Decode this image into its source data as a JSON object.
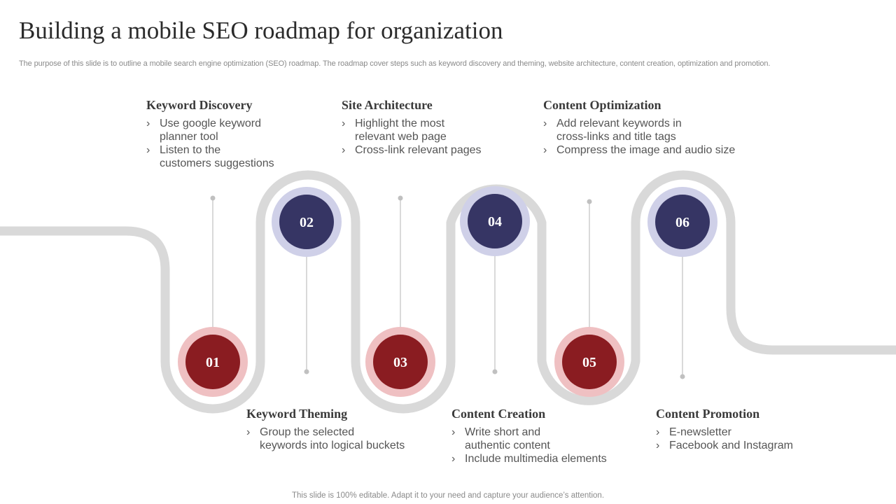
{
  "title": "Building a mobile SEO roadmap for organization",
  "subtitle": "The purpose of this slide is to outline a mobile search engine optimization (SEO) roadmap. The roadmap cover steps such as keyword discovery and theming, website architecture, content creation, optimization and promotion.",
  "footer": "This slide is 100% editable. Adapt it to your need and capture your audience’s attention.",
  "colors": {
    "road": "#d9d9d9",
    "red": "#8a1c21",
    "red_halo": "#efc0c2",
    "navy": "#363564",
    "navy_halo": "#cfd0e8",
    "connector": "#c0c0c0"
  },
  "steps": [
    {
      "num": "01",
      "theme": "red",
      "title": "Keyword Discovery",
      "bullets": [
        "Use google keyword\nplanner tool",
        "Listen to the\ncustomers suggestions"
      ]
    },
    {
      "num": "02",
      "theme": "navy",
      "title": "Keyword Theming",
      "bullets": [
        "Group the selected\n keywords into logical buckets"
      ]
    },
    {
      "num": "03",
      "theme": "red",
      "title": "Site Architecture",
      "bullets": [
        "Highlight the most\nrelevant web page",
        "Cross-link relevant pages"
      ]
    },
    {
      "num": "04",
      "theme": "navy",
      "title": "Content Creation",
      "bullets": [
        "Write short and\nauthentic  content",
        "Include  multimedia elements"
      ]
    },
    {
      "num": "05",
      "theme": "red",
      "title": "Content Optimization",
      "bullets": [
        "Add relevant keywords in\ncross-links and title tags",
        "Compress the image and audio size"
      ]
    },
    {
      "num": "06",
      "theme": "navy",
      "title": "Content Promotion",
      "bullets": [
        "E-newsletter",
        "Facebook and Instagram"
      ]
    }
  ]
}
